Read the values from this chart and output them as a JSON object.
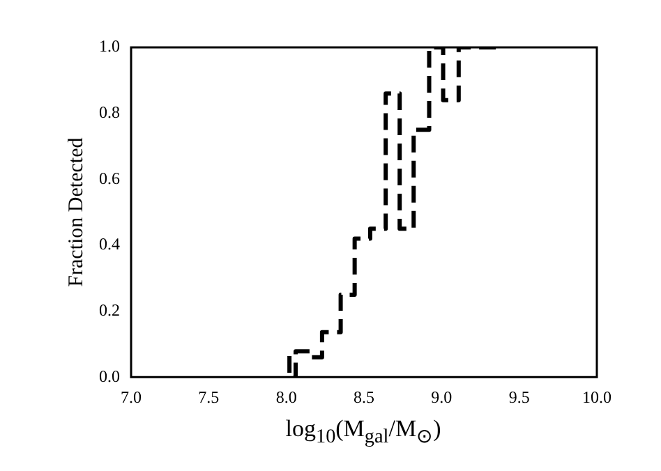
{
  "chart_data": {
    "type": "step",
    "xlabel": "log$_{10}$(M$_{gal}$/M$_{⊙}$)",
    "ylabel": "Fraction Detected",
    "x": [
      8.02,
      8.06,
      8.16,
      8.23,
      8.35,
      8.44,
      8.54,
      8.64,
      8.73,
      8.82,
      8.92,
      9.01,
      9.11,
      9.21,
      9.35
    ],
    "values": [
      0.064,
      0,
      0.078,
      0.06,
      0.136,
      0.25,
      0.42,
      0.45,
      0.86,
      0.45,
      0.75,
      1.0,
      0.84,
      1.0,
      1.0
    ],
    "color": "#000000",
    "line_style": "dashed",
    "xlim": [
      7.0,
      10.0
    ],
    "xticks": [
      {
        "value": 7,
        "label": "7.0"
      },
      7.5,
      {
        "value": 8,
        "label": "8.0"
      },
      8.5,
      {
        "value": 9,
        "label": "9.0"
      },
      9.5,
      {
        "value": 10,
        "label": "10.0"
      }
    ],
    "ylim": [
      0.0,
      1.0
    ],
    "yticks": [
      {
        "value": 0,
        "label": "0.0"
      },
      0.2,
      0.4,
      0.6,
      0.8,
      {
        "value": 1,
        "label": "1.0"
      }
    ]
  }
}
